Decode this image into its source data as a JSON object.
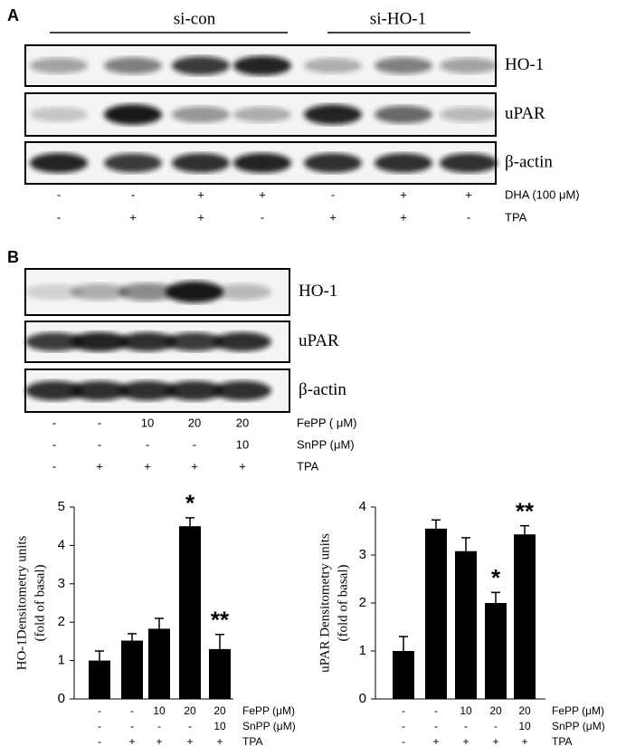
{
  "panel_a": {
    "label": "A",
    "groups": [
      "si-con",
      "si-HO-1"
    ],
    "blots": [
      "HO-1",
      "uPAR",
      "β-actin"
    ],
    "treatments": [
      {
        "name": "DHA  (100 μM)",
        "values": [
          "-",
          "-",
          "+",
          "+",
          "-",
          "+",
          "+"
        ]
      },
      {
        "name": "TPA",
        "values": [
          "-",
          "+",
          "+",
          "-",
          "+",
          "+",
          "-"
        ]
      }
    ]
  },
  "panel_b": {
    "label": "B",
    "blots": [
      "HO-1",
      "uPAR",
      "β-actin"
    ],
    "treatments": [
      {
        "name": "FePP ( μM)",
        "values": [
          "-",
          "-",
          "10",
          "20",
          "20"
        ]
      },
      {
        "name": "SnPP (μM)",
        "values": [
          "-",
          "-",
          "-",
          "-",
          "10"
        ]
      },
      {
        "name": "TPA",
        "values": [
          "-",
          "+",
          "+",
          "+",
          "+"
        ]
      }
    ]
  },
  "chart_data": [
    {
      "type": "bar",
      "y_label": [
        "HO-1Densitometry  units",
        "(fold of basal)"
      ],
      "color": "#000000",
      "values": [
        1.0,
        1.52,
        1.83,
        4.5,
        1.3
      ],
      "errors": [
        0.25,
        0.18,
        0.27,
        0.22,
        0.38
      ],
      "significance": [
        null,
        null,
        null,
        "*",
        "**"
      ],
      "ylim": [
        0,
        5
      ],
      "yticks": [
        0,
        1,
        2,
        3,
        4,
        5
      ],
      "treatments": [
        {
          "name": "FePP (μM)",
          "values": [
            "-",
            "-",
            "10",
            "20",
            "20"
          ]
        },
        {
          "name": "SnPP (μM)",
          "values": [
            "-",
            "-",
            "-",
            "-",
            "10"
          ]
        },
        {
          "name": "TPA",
          "values": [
            "-",
            "+",
            "+",
            "+",
            "+"
          ]
        }
      ]
    },
    {
      "type": "bar",
      "y_label": [
        "uPAR Densitometry  units",
        "(fold of basal)"
      ],
      "color": "#000000",
      "values": [
        1.0,
        3.55,
        3.08,
        2.0,
        3.43
      ],
      "errors": [
        0.3,
        0.18,
        0.28,
        0.22,
        0.18
      ],
      "significance": [
        null,
        null,
        null,
        "*",
        "**"
      ],
      "ylim": [
        0,
        4
      ],
      "yticks": [
        0,
        1,
        2,
        3,
        4
      ],
      "treatments": [
        {
          "name": "FePP (μM)",
          "values": [
            "-",
            "-",
            "10",
            "20",
            "20"
          ]
        },
        {
          "name": "SnPP (μM)",
          "values": [
            "-",
            "-",
            "-",
            "-",
            "10"
          ]
        },
        {
          "name": "TPA",
          "values": [
            "-",
            "+",
            "+",
            "+",
            "+"
          ]
        }
      ]
    }
  ]
}
